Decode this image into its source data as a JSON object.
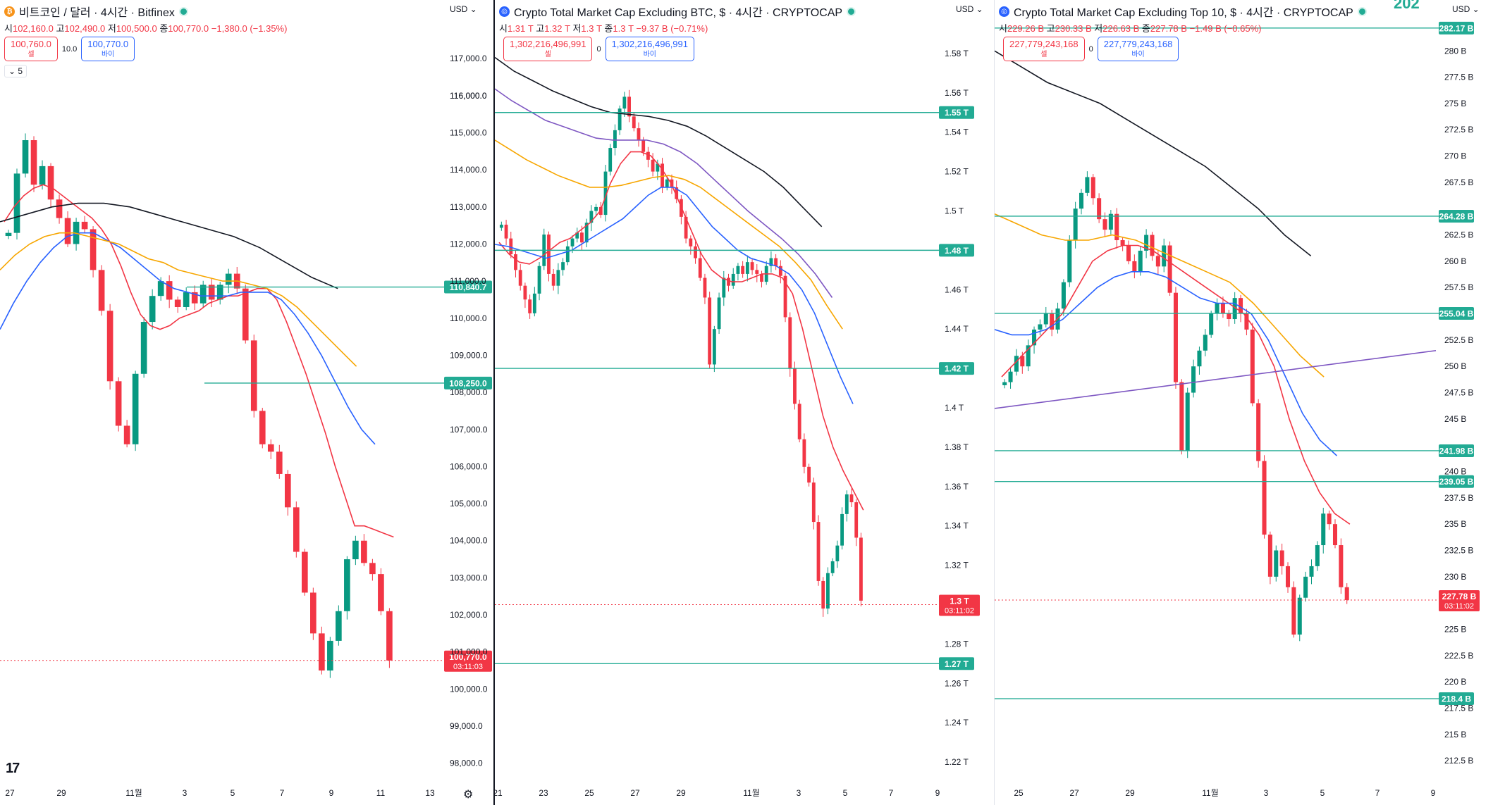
{
  "panels": [
    {
      "id": "btc",
      "coin_icon": "bitcoin-icon",
      "coin_glyph": "₿",
      "coin_color": "#f7931a",
      "title": "비트코인 / 달러 · 4시간 · Bitfinex",
      "ohlc": {
        "o_label": "시",
        "o": "102,160.0",
        "h_label": "고",
        "h": "102,490.0",
        "l_label": "저",
        "l": "100,500.0",
        "c_label": "종",
        "c": "100,770.0",
        "change": "−1,380.0 (−1.35%)"
      },
      "sell": {
        "value": "100,760.0",
        "label": "셀"
      },
      "spread": "10.0",
      "buy": {
        "value": "100,770.0",
        "label": "바이"
      },
      "indicator_label": "5",
      "currency": "USD",
      "x_labels": [
        "27",
        "29",
        "11월",
        "3",
        "5",
        "7",
        "9",
        "11",
        "13"
      ],
      "y_labels": [
        "116,000.0",
        "117,000.0",
        "116,000.0",
        "115,000.0",
        "114,000.0",
        "113,000.0",
        "112,000.0",
        "111,000.0",
        "110,000.0",
        "109,000.0",
        "108,000.0",
        "107,000.0",
        "106,000.0",
        "105,000.0",
        "104,000.0",
        "103,000.0",
        "102,000.0",
        "101,000.0",
        "100,000.0",
        "99,000.0",
        "98,000.0"
      ],
      "level_labels": [
        "110,840.7",
        "108,250.0"
      ],
      "price_label": "100,770.0",
      "countdown": "03:11:03"
    },
    {
      "id": "total2",
      "coin_icon": "crypto-cap-icon",
      "coin_glyph": "◎",
      "coin_color": "#2962ff",
      "title": "Crypto Total Market Cap Excluding BTC, $ · 4시간 · CRYPTOCAP",
      "ohlc": {
        "o_label": "시",
        "o": "1.31 T",
        "h_label": "고",
        "h": "1.32 T",
        "l_label": "저",
        "l": "1.3 T",
        "c_label": "종",
        "c": "1.3 T",
        "change": "−9.37 B (−0.71%)"
      },
      "sell": {
        "value": "1,302,216,496,991",
        "label": "셀"
      },
      "spread": "0",
      "buy": {
        "value": "1,302,216,496,991",
        "label": "바이"
      },
      "currency": "USD",
      "x_labels": [
        "21",
        "23",
        "25",
        "27",
        "29",
        "11월",
        "3",
        "5",
        "7",
        "9"
      ],
      "y_labels": [
        "1.58 T",
        "1.56 T",
        "1.54 T",
        "1.52 T",
        "1.5 T",
        "1.46 T",
        "1.44 T",
        "1.4 T",
        "1.38 T",
        "1.36 T",
        "1.34 T",
        "1.32 T",
        "1.28 T",
        "1.26 T",
        "1.24 T",
        "1.22 T"
      ],
      "level_labels": [
        "1.55 T",
        "1.48 T",
        "1.42 T",
        "1.27 T"
      ],
      "price_label": "1.3 T",
      "countdown": "03:11:02"
    },
    {
      "id": "others",
      "coin_icon": "crypto-cap-icon",
      "coin_glyph": "◎",
      "coin_color": "#2962ff",
      "title": "Crypto Total Market Cap Excluding Top 10, $ · 4시간 · CRYPTOCAP",
      "ohlc": {
        "o_label": "시",
        "o": "229.26 B",
        "h_label": "고",
        "h": "230.33 B",
        "l_label": "저",
        "l": "226.63 B",
        "c_label": "종",
        "c": "227.78 B",
        "change": "−1.49 B (−0.65%)"
      },
      "sell": {
        "value": "227,779,243,168",
        "label": "셀"
      },
      "spread": "0",
      "buy": {
        "value": "227,779,243,168",
        "label": "바이"
      },
      "currency": "USD",
      "top_badge": "202",
      "x_labels": [
        "25",
        "27",
        "29",
        "11월",
        "3",
        "5",
        "7",
        "9"
      ],
      "y_labels": [
        "280 B",
        "277.5 B",
        "275 B",
        "272.5 B",
        "270 B",
        "267.5 B",
        "262.5 B",
        "260 B",
        "257.5 B",
        "252.5 B",
        "250 B",
        "247.5 B",
        "245 B",
        "240 B",
        "237.5 B",
        "235 B",
        "232.5 B",
        "230 B",
        "225 B",
        "222.5 B",
        "220 B",
        "217.5 B",
        "215 B",
        "212.5 B"
      ],
      "level_labels": [
        "282.17 B",
        "264.28 B",
        "255.04 B",
        "241.98 B",
        "239.05 B",
        "218.4 B"
      ],
      "price_label": "227.78 B",
      "countdown": "03:11:02"
    }
  ],
  "chart_data": [
    {
      "type": "candlestick",
      "title": "비트코인 / 달러 · 4시간 · Bitfinex",
      "x": [
        "27",
        "29",
        "11월",
        "3",
        "5",
        "7",
        "9",
        "11",
        "13"
      ],
      "ylim": [
        97500,
        118200
      ],
      "close_series": [
        112300,
        113900,
        114800,
        113600,
        114100,
        113200,
        112700,
        112000,
        112600,
        112400,
        111300,
        110200,
        108300,
        107100,
        106600,
        108500,
        109900,
        110600,
        111000,
        110500,
        110300,
        110700,
        110400,
        110900,
        110500,
        110900,
        111200,
        110800,
        109400,
        107500,
        106600,
        106400,
        105800,
        104900,
        103700,
        102600,
        101500,
        100500,
        101300,
        102100,
        103500,
        104000,
        103400,
        103100,
        102100,
        100770
      ],
      "ma_series": [
        {
          "color": "#f23645",
          "values": [
            112600,
            113000,
            113300,
            113500,
            113600,
            113500,
            113300,
            113100,
            112900,
            112700,
            112400,
            112000,
            111400,
            110700,
            110100,
            109800,
            109700,
            109800,
            110000,
            110100,
            110200,
            110400,
            110500,
            110600,
            110600,
            110700,
            110800,
            110800,
            110500,
            109900,
            109200,
            108500,
            107700,
            106900,
            106000,
            105200,
            104400,
            104400,
            104300,
            104200,
            104100
          ]
        },
        {
          "color": "#2962ff",
          "values": [
            109700,
            110400,
            111000,
            111500,
            111900,
            112200,
            112300,
            112300,
            112100,
            111900,
            111600,
            111300,
            111000,
            110800,
            110700,
            110600,
            110600,
            110600,
            110700,
            110700,
            110700,
            110500,
            110100,
            109600,
            109000,
            108300,
            107600,
            107000,
            106600
          ]
        },
        {
          "color": "#f7a600",
          "values": [
            111300,
            111700,
            112000,
            112200,
            112300,
            112300,
            112200,
            112100,
            112000,
            111800,
            111600,
            111500,
            111300,
            111200,
            111100,
            111000,
            111000,
            110900,
            110800,
            110600,
            110300,
            109900,
            109500,
            109100,
            108700
          ]
        },
        {
          "color": "#131722",
          "values": [
            112600,
            112800,
            113000,
            113100,
            113100,
            113000,
            112800,
            112600,
            112400,
            112200,
            111900,
            111500,
            111100,
            110800
          ]
        }
      ],
      "levels": [
        110840.7,
        108250.0
      ],
      "last_price": 100770.0
    },
    {
      "type": "candlestick",
      "title": "Crypto Total Market Cap Excluding BTC, $ · 4시간 · CRYPTOCAP",
      "x": [
        "21",
        "23",
        "25",
        "27",
        "29",
        "11월",
        "3",
        "5",
        "7",
        "9"
      ],
      "ylim": [
        1.21,
        1.6
      ],
      "close_series": [
        1.493,
        1.486,
        1.478,
        1.47,
        1.462,
        1.455,
        1.448,
        1.458,
        1.472,
        1.488,
        1.468,
        1.462,
        1.47,
        1.474,
        1.482,
        1.486,
        1.489,
        1.484,
        1.494,
        1.5,
        1.502,
        1.498,
        1.52,
        1.532,
        1.541,
        1.552,
        1.558,
        1.548,
        1.542,
        1.536,
        1.53,
        1.526,
        1.52,
        1.524,
        1.512,
        1.516,
        1.512,
        1.506,
        1.497,
        1.486,
        1.482,
        1.476,
        1.466,
        1.456,
        1.422,
        1.44,
        1.456,
        1.466,
        1.462,
        1.468,
        1.472,
        1.468,
        1.474,
        1.47,
        1.468,
        1.464,
        1.472,
        1.476,
        1.472,
        1.467,
        1.446,
        1.42,
        1.402,
        1.384,
        1.37,
        1.362,
        1.342,
        1.312,
        1.298,
        1.316,
        1.322,
        1.33,
        1.346,
        1.356,
        1.352,
        1.334,
        1.302
      ],
      "ma_series": [
        {
          "color": "#f23645",
          "values": [
            1.484,
            1.478,
            1.474,
            1.473,
            1.476,
            1.48,
            1.484,
            1.486,
            1.49,
            1.494,
            1.5,
            1.514,
            1.524,
            1.53,
            1.53,
            1.528,
            1.522,
            1.514,
            1.502,
            1.49,
            1.478,
            1.47,
            1.466,
            1.464,
            1.464,
            1.466,
            1.468,
            1.468,
            1.466,
            1.458,
            1.44,
            1.418,
            1.396,
            1.38,
            1.368,
            1.358,
            1.348
          ]
        },
        {
          "color": "#2962ff",
          "values": [
            1.483,
            1.482,
            1.48,
            1.478,
            1.476,
            1.478,
            1.48,
            1.484,
            1.488,
            1.492,
            1.496,
            1.502,
            1.508,
            1.512,
            1.512,
            1.508,
            1.5,
            1.492,
            1.486,
            1.48,
            1.476,
            1.474,
            1.472,
            1.468,
            1.46,
            1.448,
            1.432,
            1.416,
            1.402
          ]
        },
        {
          "color": "#f7a600",
          "values": [
            1.536,
            1.531,
            1.526,
            1.522,
            1.518,
            1.515,
            1.512,
            1.512,
            1.513,
            1.515,
            1.517,
            1.518,
            1.516,
            1.512,
            1.506,
            1.5,
            1.494,
            1.488,
            1.482,
            1.474,
            1.465,
            1.452,
            1.44
          ]
        },
        {
          "color": "#7e57c2",
          "values": [
            1.562,
            1.556,
            1.551,
            1.546,
            1.543,
            1.54,
            1.537,
            1.536,
            1.536,
            1.536,
            1.534,
            1.53,
            1.524,
            1.516,
            1.508,
            1.5,
            1.493,
            1.486,
            1.478,
            1.468,
            1.456
          ]
        },
        {
          "color": "#131722",
          "values": [
            1.578,
            1.571,
            1.566,
            1.561,
            1.557,
            1.553,
            1.55,
            1.549,
            1.548,
            1.546,
            1.543,
            1.538,
            1.532,
            1.526,
            1.52,
            1.512,
            1.502,
            1.492
          ]
        }
      ],
      "levels": [
        1.55,
        1.48,
        1.42,
        1.27
      ],
      "last_price": 1.3
    },
    {
      "type": "candlestick",
      "title": "Crypto Total Market Cap Excluding Top 10, $ · 4시간 · CRYPTOCAP",
      "x": [
        "25",
        "27",
        "29",
        "11월",
        "3",
        "5",
        "7",
        "9"
      ],
      "ylim": [
        210.5,
        283.5
      ],
      "close_series": [
        248.5,
        249.5,
        251.0,
        250.0,
        252.0,
        253.5,
        254.0,
        255.0,
        253.5,
        255.5,
        258.0,
        262.0,
        265.0,
        266.5,
        268.0,
        266.0,
        264.0,
        263.0,
        264.5,
        262.0,
        261.5,
        260.0,
        259.0,
        261.0,
        262.5,
        260.5,
        259.5,
        261.5,
        257.0,
        248.5,
        242.0,
        247.5,
        250.0,
        251.5,
        253.0,
        255.0,
        256.0,
        255.0,
        254.5,
        256.5,
        255.0,
        253.5,
        246.5,
        241.0,
        234.0,
        230.0,
        232.5,
        231.0,
        229.0,
        224.5,
        228.0,
        230.0,
        231.0,
        233.0,
        236.0,
        235.0,
        233.0,
        229.0,
        227.78
      ],
      "ma_series": [
        {
          "color": "#f23645",
          "values": [
            249.0,
            250.5,
            252.0,
            253.5,
            255.0,
            257.5,
            260.0,
            261.0,
            261.5,
            261.5,
            261.0,
            260.0,
            259.0,
            258.0,
            257.0,
            256.0,
            255.0,
            253.0,
            250.0,
            245.0,
            241.0,
            238.0,
            236.0,
            235.0
          ]
        },
        {
          "color": "#2962ff",
          "values": [
            253.5,
            253.0,
            253.0,
            253.5,
            254.5,
            256.0,
            257.5,
            258.5,
            259.0,
            259.0,
            258.5,
            257.5,
            256.5,
            256.0,
            256.0,
            255.0,
            252.5,
            249.0,
            245.5,
            243.0,
            241.5
          ]
        },
        {
          "color": "#f7a600",
          "values": [
            264.5,
            263.5,
            262.5,
            262.0,
            262.0,
            262.5,
            262.0,
            261.0,
            260.0,
            259.0,
            258.0,
            256.0,
            253.5,
            251.0,
            249.0
          ]
        },
        {
          "color": "#131722",
          "values": [
            280.0,
            278.5,
            277.0,
            276.0,
            275.0,
            273.5,
            272.0,
            270.5,
            269.0,
            267.0,
            265.0,
            262.5,
            260.5
          ]
        },
        {
          "color": "#7e57c2",
          "values": [
            246.0,
            251.5
          ]
        }
      ],
      "levels": [
        282.17,
        264.28,
        255.04,
        241.98,
        239.05,
        218.4
      ],
      "last_price": 227.78
    }
  ]
}
